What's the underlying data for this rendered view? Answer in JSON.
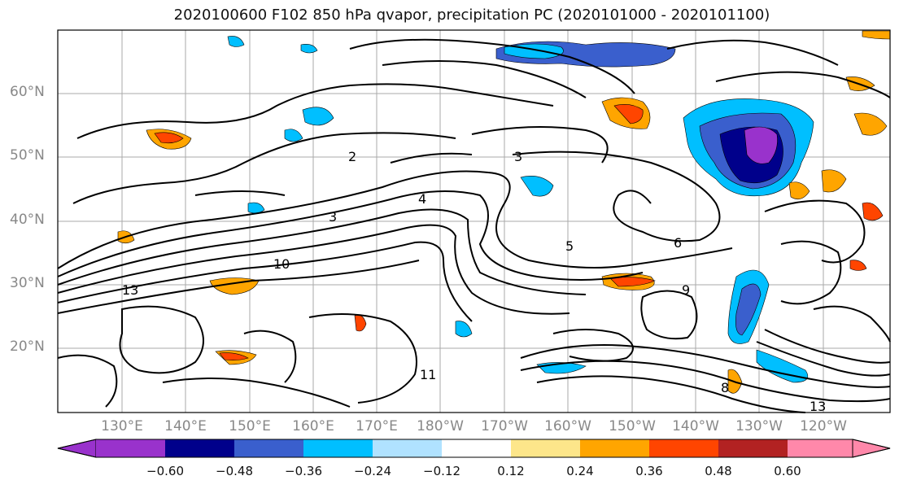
{
  "title": "2020100600 F102 850 hPa qvapor, precipitation PC (2020101000 - 2020101100)",
  "lat_labels": [
    "60°N",
    "50°N",
    "40°N",
    "30°N",
    "20°N"
  ],
  "lon_labels": [
    "130°E",
    "140°E",
    "150°E",
    "160°E",
    "170°E",
    "180°W",
    "170°W",
    "160°W",
    "150°W",
    "140°W",
    "130°W",
    "120°W"
  ],
  "colorbar": {
    "ticks": [
      "−0.60",
      "−0.48",
      "−0.36",
      "−0.24",
      "−0.12",
      "0.12",
      "0.24",
      "0.36",
      "0.48",
      "0.60"
    ],
    "colors": [
      "#9932cc",
      "#00008b",
      "#3a5fcd",
      "#00bfff",
      "#b0e2ff",
      "#ffffff",
      "#fde68a",
      "#ffa500",
      "#ff4500",
      "#b22222",
      "#ff88aa"
    ]
  },
  "contour_labels": [
    "2",
    "3",
    "3",
    "4",
    "5",
    "6",
    "8",
    "9",
    "10",
    "11",
    "13",
    "13"
  ]
}
